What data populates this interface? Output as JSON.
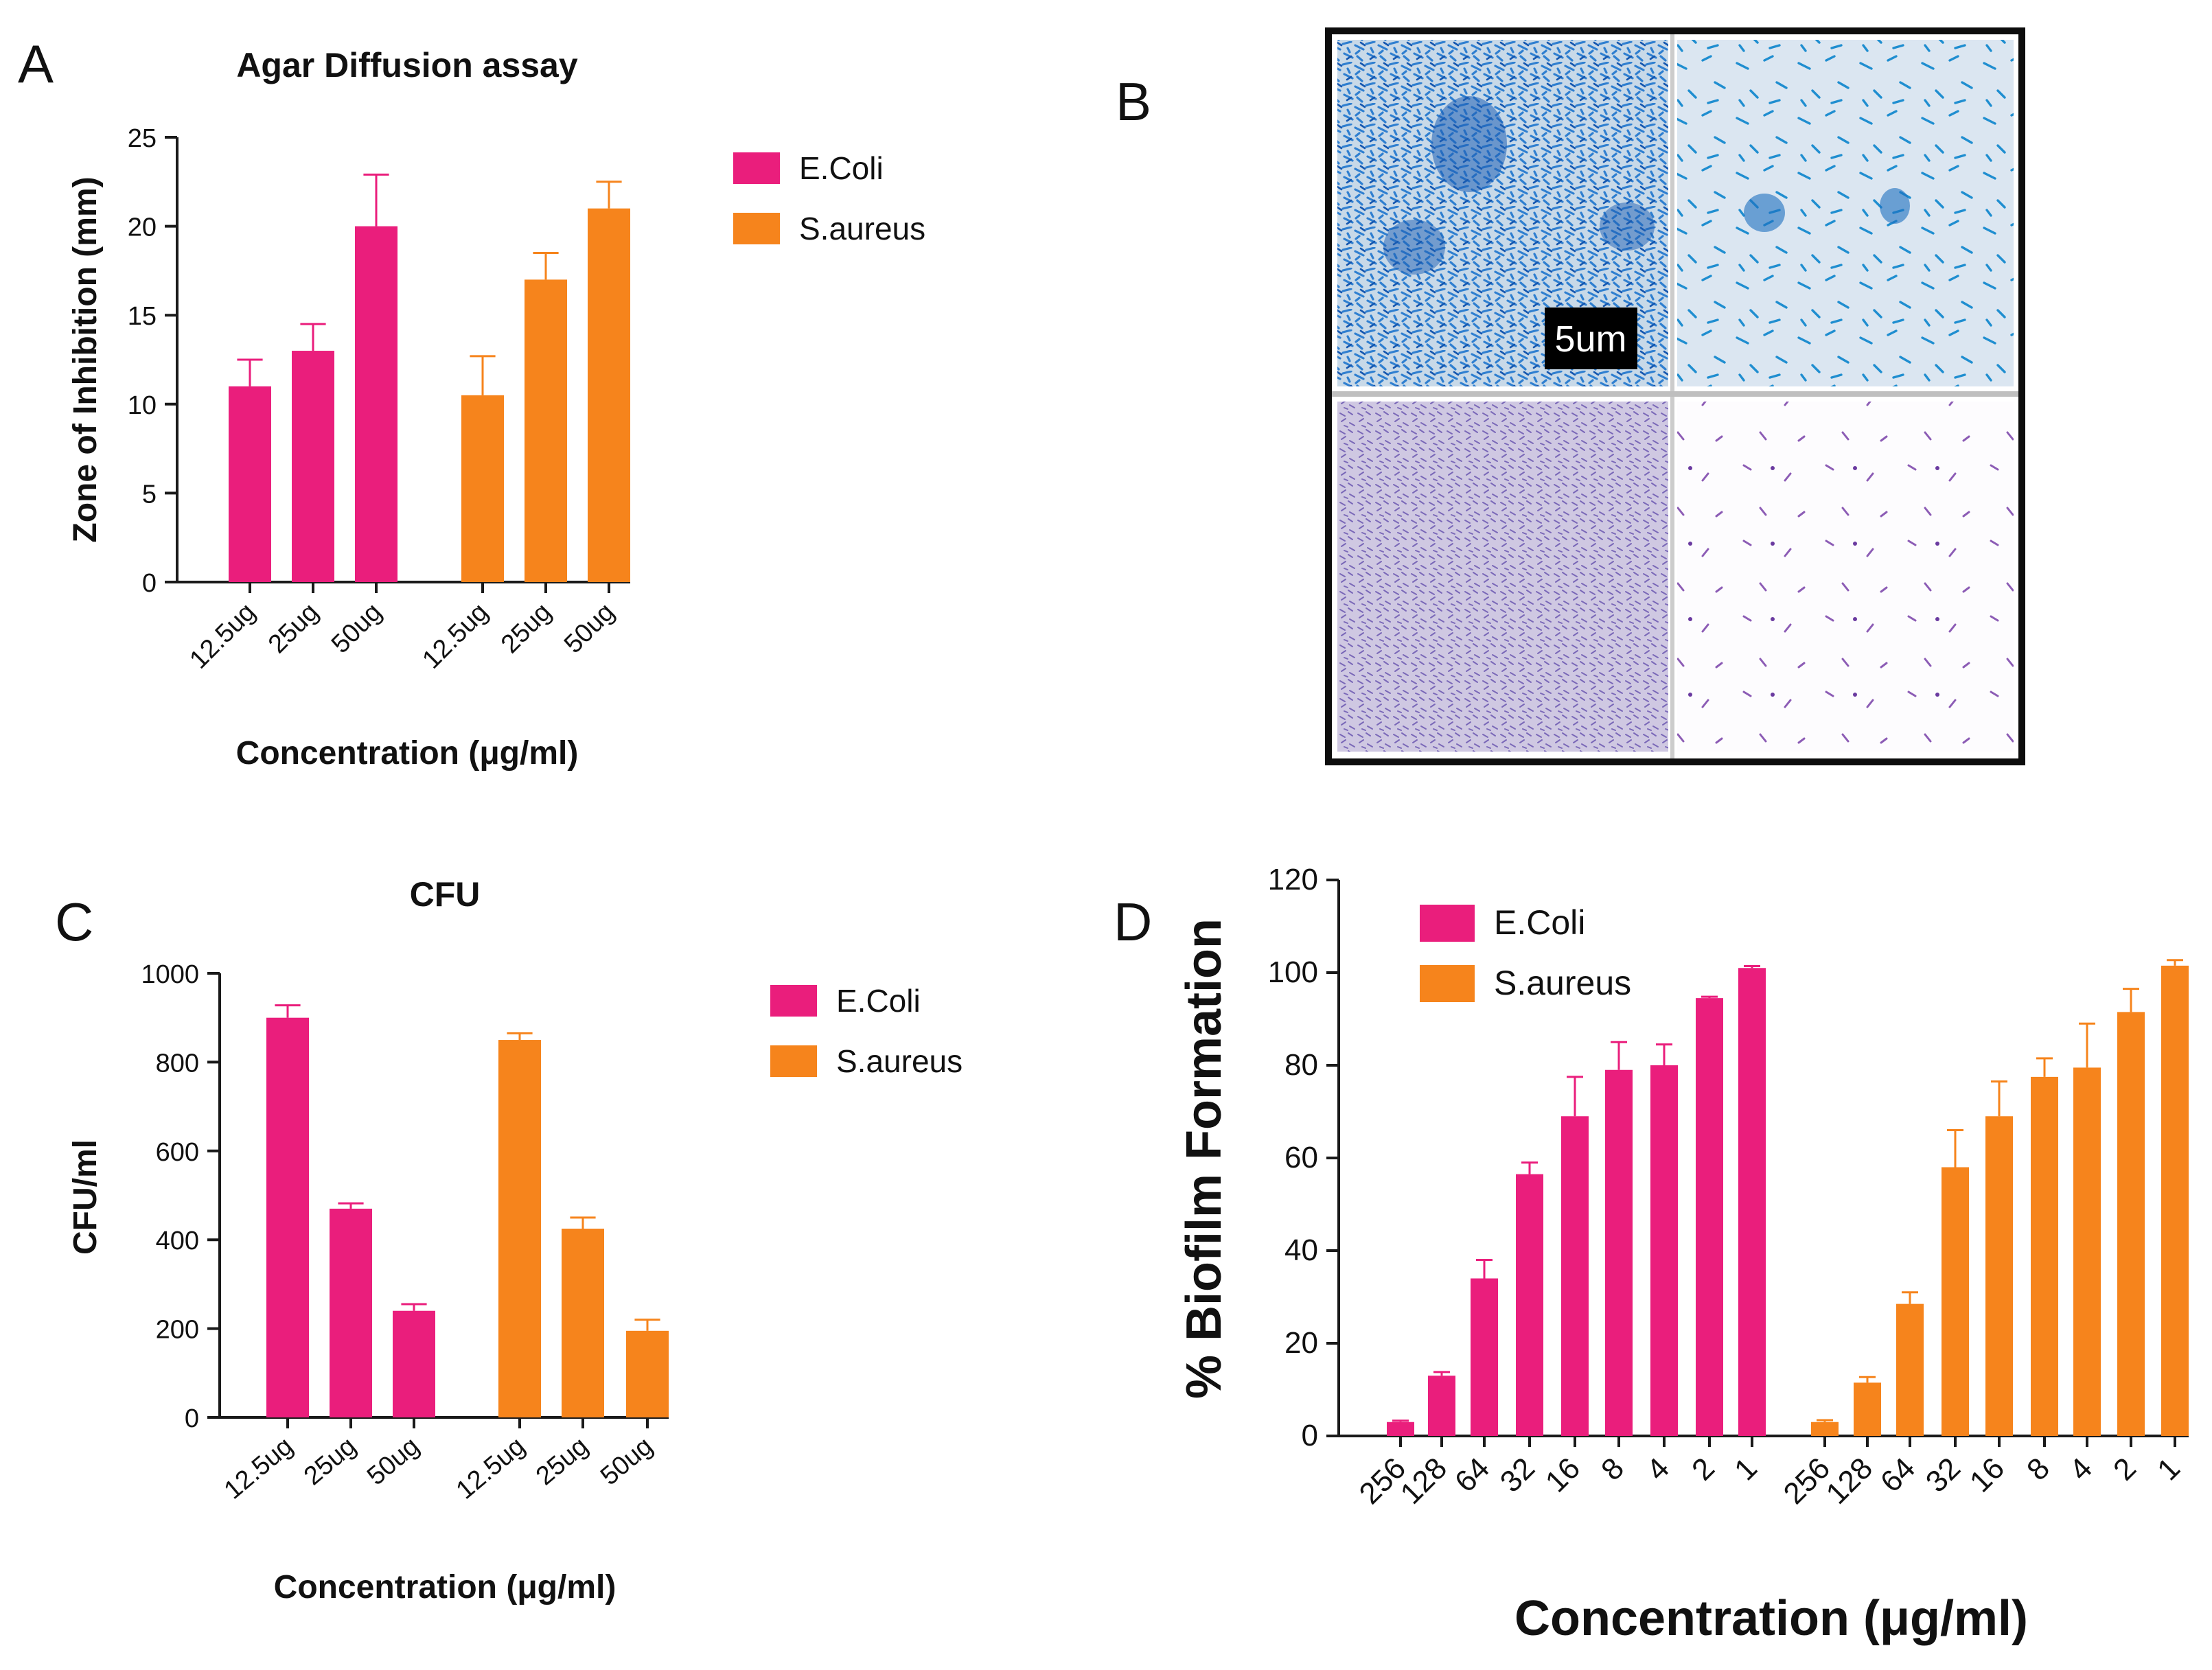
{
  "colors": {
    "ecoli": "#ea1e7c",
    "saureus": "#f6841c",
    "axis": "#1a1a1a"
  },
  "panel_labels": {
    "a": "A",
    "b": "B",
    "c": "C",
    "d": "D"
  },
  "scale_bar_label": "5um",
  "chart_data": [
    {
      "id": "A",
      "type": "bar",
      "title": "Agar Diffusion assay",
      "xlabel": "Concentration (μg/ml)",
      "ylabel": "Zone of Inhibition (mm)",
      "ylim": [
        0,
        25
      ],
      "yticks": [
        0,
        5,
        10,
        15,
        20,
        25
      ],
      "legend": [
        "E.Coli",
        "S.aureus"
      ],
      "groups": [
        {
          "name": "E.Coli",
          "categories": [
            "12.5ug",
            "25ug",
            "50ug"
          ],
          "values": [
            11,
            13,
            20
          ],
          "errors": [
            1.5,
            1.5,
            2.9
          ]
        },
        {
          "name": "S.aureus",
          "categories": [
            "12.5ug",
            "25ug",
            "50ug"
          ],
          "values": [
            10.5,
            17,
            21
          ],
          "errors": [
            2.2,
            1.5,
            1.5
          ]
        }
      ]
    },
    {
      "id": "C",
      "type": "bar",
      "title": "CFU",
      "xlabel": "Concentration (μg/ml)",
      "ylabel": "CFU/ml",
      "ylim": [
        0,
        1000
      ],
      "yticks": [
        0,
        200,
        400,
        600,
        800,
        1000
      ],
      "legend": [
        "E.Coli",
        "S.aureus"
      ],
      "groups": [
        {
          "name": "E.Coli",
          "categories": [
            "12.5ug",
            "25ug",
            "50ug"
          ],
          "values": [
            900,
            470,
            240
          ],
          "errors": [
            28,
            12,
            15
          ]
        },
        {
          "name": "S.aureus",
          "categories": [
            "12.5ug",
            "25ug",
            "50ug"
          ],
          "values": [
            850,
            425,
            195
          ],
          "errors": [
            15,
            25,
            25
          ]
        }
      ]
    },
    {
      "id": "D",
      "type": "bar",
      "title": "",
      "xlabel": "Concentration (μg/ml)",
      "ylabel": "% Biofilm Formation",
      "ylim": [
        0,
        120
      ],
      "yticks": [
        0,
        20,
        40,
        60,
        80,
        100,
        120
      ],
      "legend": [
        "E.Coli",
        "S.aureus"
      ],
      "groups": [
        {
          "name": "E.Coli",
          "categories": [
            "256",
            "128",
            "64",
            "32",
            "16",
            "8",
            "4",
            "2",
            "1"
          ],
          "values": [
            3,
            13,
            34,
            56.5,
            69,
            79,
            80,
            94.5,
            101
          ],
          "errors": [
            0.3,
            0.8,
            4,
            2.5,
            8.5,
            6,
            4.5,
            0.3,
            0.4
          ]
        },
        {
          "name": "S.aureus",
          "categories": [
            "256",
            "128",
            "64",
            "32",
            "16",
            "8",
            "4",
            "2",
            "1"
          ],
          "values": [
            3,
            11.5,
            28.5,
            58,
            69,
            77.5,
            79.5,
            91.5,
            101.5
          ],
          "errors": [
            0.4,
            1.2,
            2.5,
            8,
            7.5,
            4,
            9.5,
            5,
            1.2
          ]
        }
      ]
    }
  ]
}
